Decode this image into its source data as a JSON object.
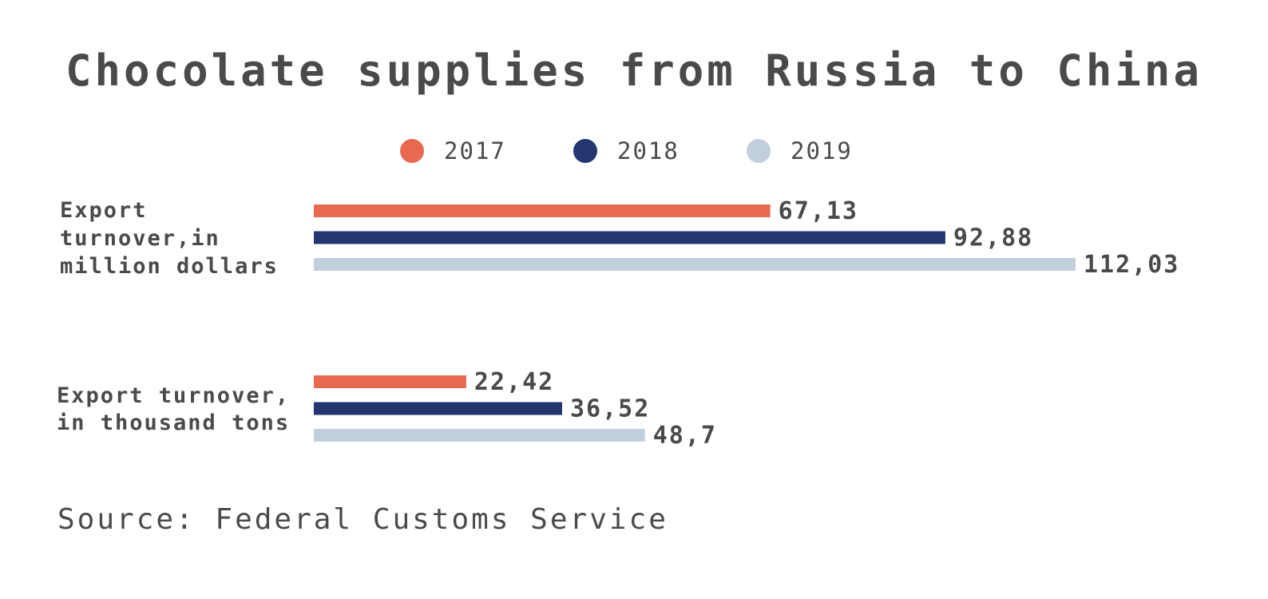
{
  "chart_data": {
    "type": "bar",
    "orientation": "horizontal",
    "title": "Chocolate supplies from Russia to China",
    "categories": [
      [
        "Export",
        "turnover,in",
        "million dollars"
      ],
      [
        "Export turnover,",
        "in thousand tons"
      ]
    ],
    "series": [
      {
        "name": "2017",
        "color": "#E8694F",
        "values": [
          67.13,
          22.42
        ],
        "labels": [
          "67,13",
          "22,42"
        ]
      },
      {
        "name": "2018",
        "color": "#233670",
        "values": [
          92.88,
          36.52
        ],
        "labels": [
          "92,88",
          "36,52"
        ]
      },
      {
        "name": "2019",
        "color": "#C1CEDC",
        "values": [
          112.03,
          48.7
        ],
        "labels": [
          "112,03",
          "48,7"
        ]
      }
    ],
    "legend_position": "top-center",
    "grid": false,
    "source": "Source: Federal Customs Service"
  }
}
